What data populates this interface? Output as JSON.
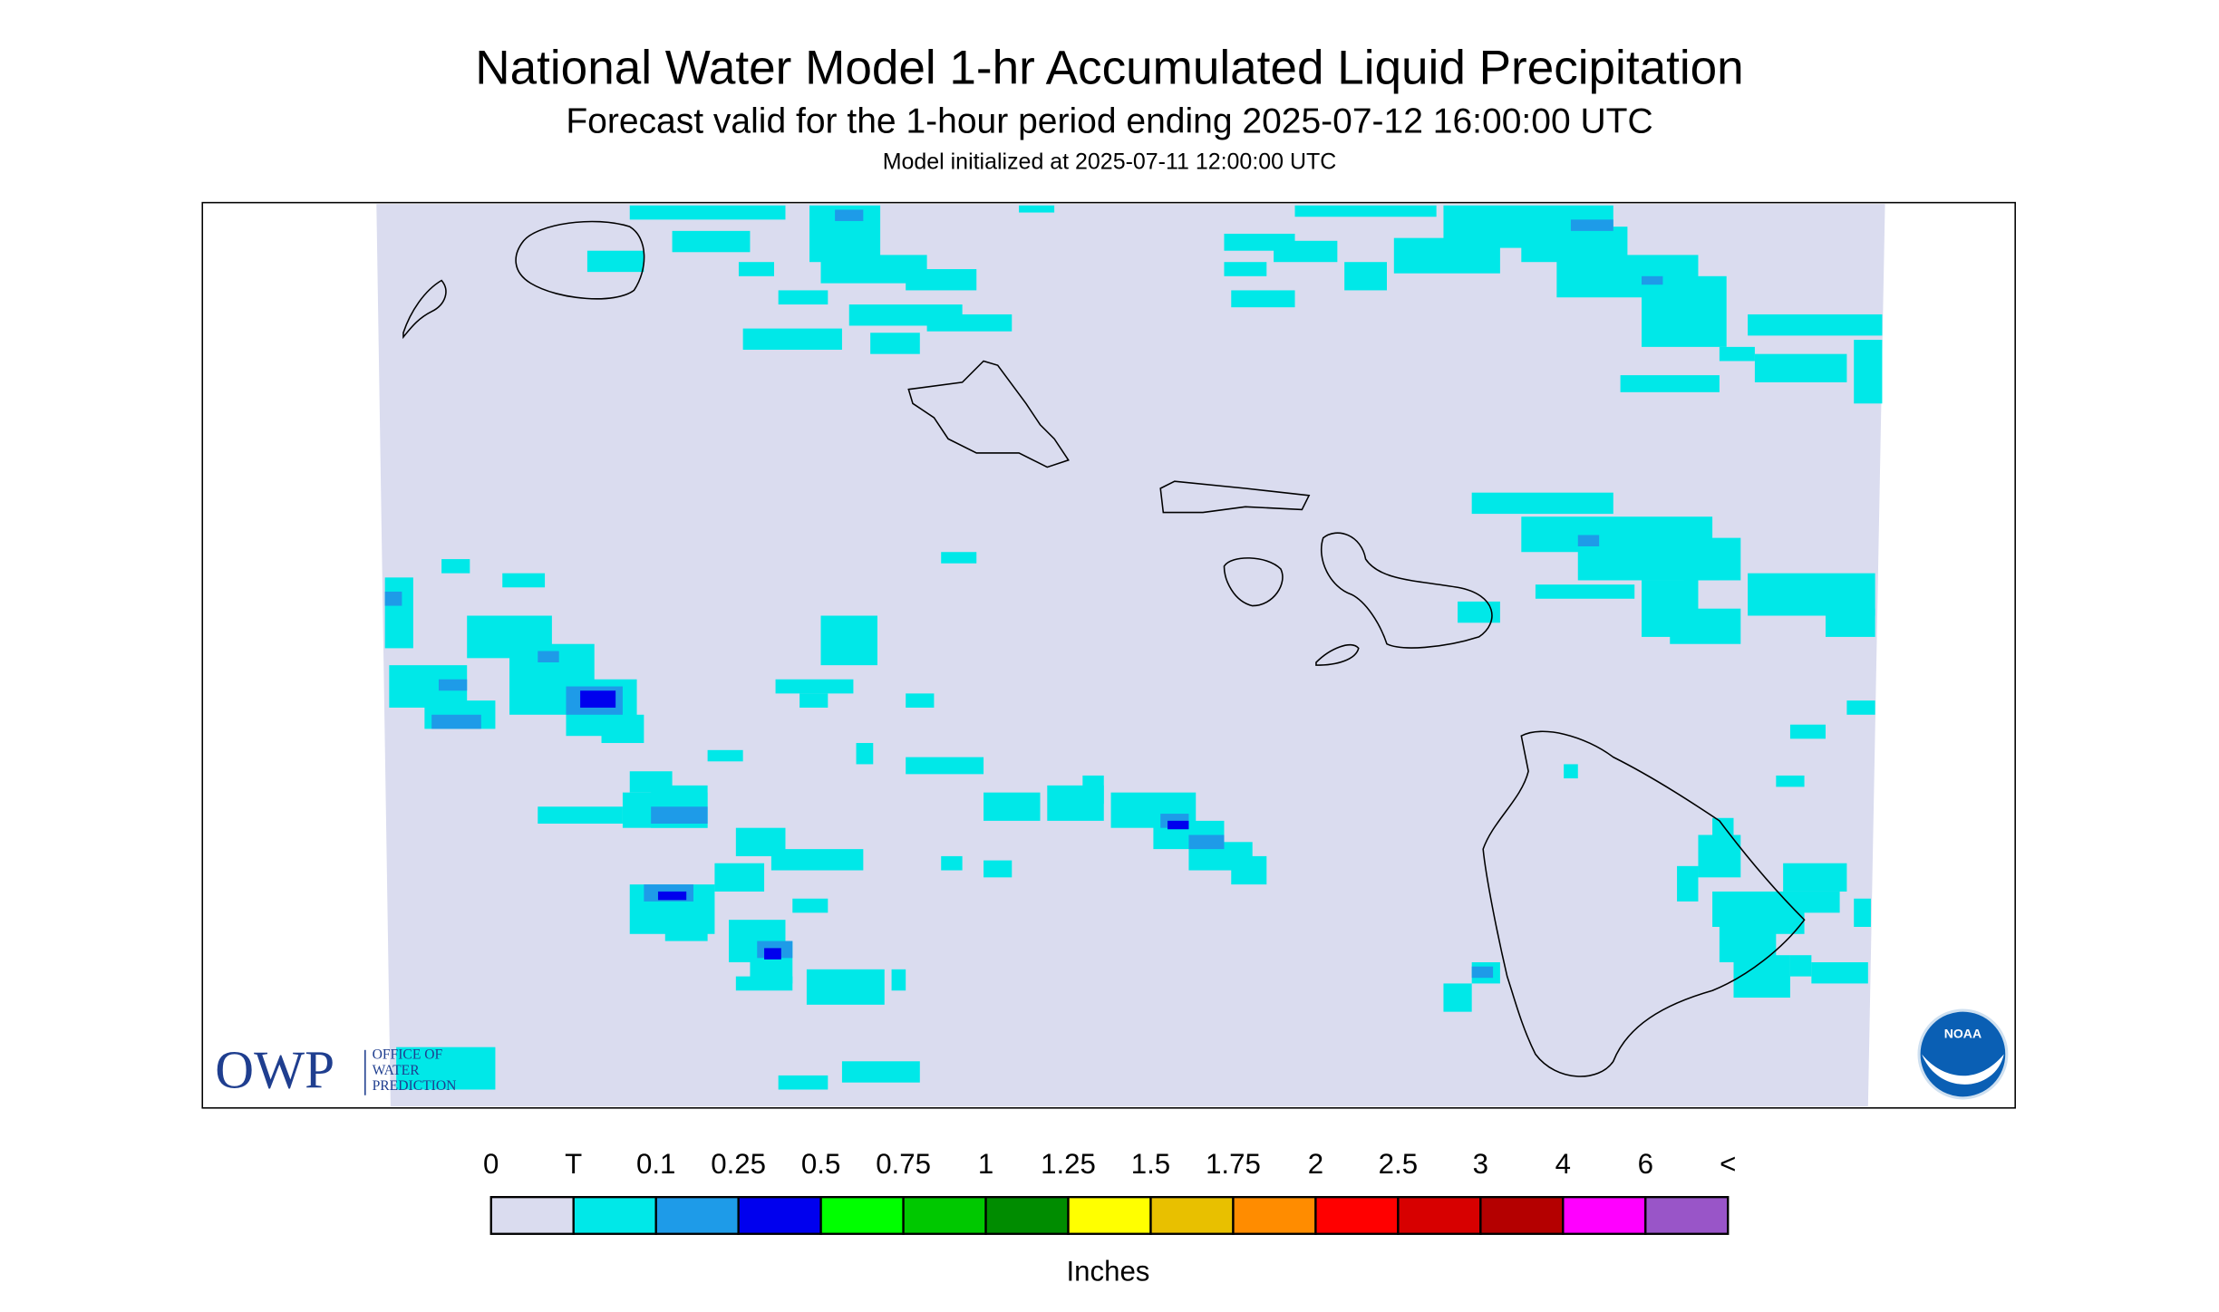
{
  "header": {
    "title": "National Water Model 1-hr Accumulated Liquid Precipitation",
    "subtitle": "Forecast valid for the 1-hour period ending 2025-07-12 16:00:00 UTC",
    "init": "Model initialized at 2025-07-11 12:00:00 UTC"
  },
  "legend": {
    "labels": [
      "0",
      "T",
      "0.1",
      "0.25",
      "0.5",
      "0.75",
      "1",
      "1.25",
      "1.5",
      "1.75",
      "2",
      "2.5",
      "3",
      "4",
      "6",
      "<"
    ],
    "colors": [
      "#dadcef",
      "#00e8e8",
      "#1e9be8",
      "#0000ee",
      "#00ff00",
      "#00c800",
      "#008c00",
      "#ffff00",
      "#e8c000",
      "#ff8c00",
      "#ff0000",
      "#d70000",
      "#b40000",
      "#ff00ff",
      "#9955c8"
    ],
    "unit": "Inches"
  },
  "logos": {
    "owp": "OWP",
    "owp_lines": [
      "OFFICE OF",
      "WATER",
      "PREDICTION"
    ],
    "noaa": "NOAA"
  }
}
